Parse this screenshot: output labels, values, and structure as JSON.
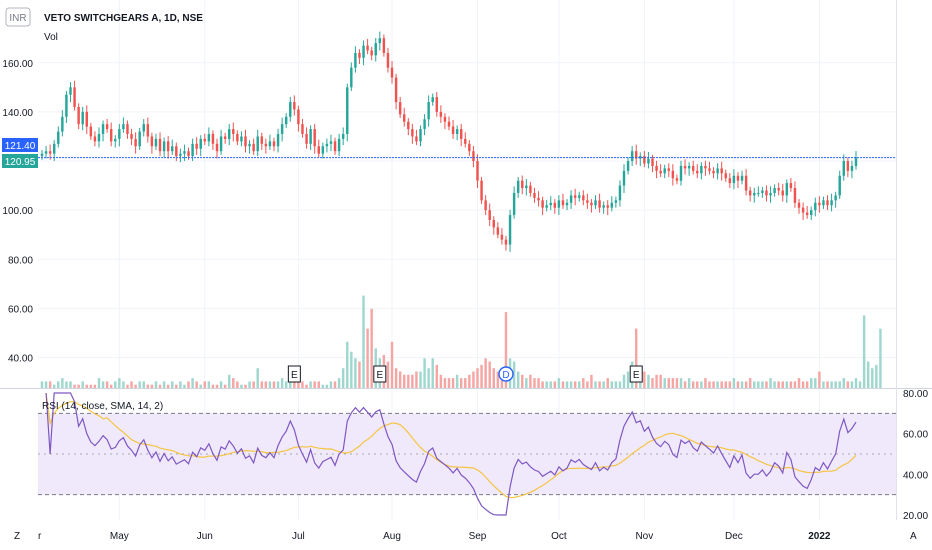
{
  "header": {
    "title": "VETO SWITCHGEARS A, 1D, NSE",
    "volume_label": "Vol",
    "currency_badge": "INR",
    "scale_badge_text": "1"
  },
  "price_labels": {
    "last_price": "121.40",
    "prev_price": "120.95",
    "last_price_value": 121.4,
    "last_price_color": "#2962ff",
    "prev_price_color": "#26a69a"
  },
  "rsi": {
    "label": "RSI (14, close, SMA, 14, 2)",
    "band_upper": 70,
    "band_lower": 30,
    "band_mid": 50,
    "yticks": [
      "80.00",
      "60.00",
      "40.00",
      "20.00"
    ],
    "rsi_color": "#7e57c2",
    "sma_color": "#f5c542"
  },
  "bottom": {
    "left_icon_text": "Z",
    "right_icon_text": "A",
    "x_first_partial": "r"
  },
  "earnings_markers": [
    "E",
    "E",
    "E"
  ],
  "dividend_marker": "D",
  "colors": {
    "up": "#26a69a",
    "down": "#ef5350",
    "vol_up": "#9fd7cf",
    "vol_down": "#f5a6a4",
    "band_fill": "#efe9fb",
    "grid": "#f0f3fa"
  },
  "chart_data": {
    "type": "candlestick",
    "title": "VETO SWITCHGEARS A, 1D, NSE",
    "x_tick_labels": [
      "May",
      "Jun",
      "Jul",
      "Aug",
      "Sep",
      "Oct",
      "Nov",
      "Dec",
      "2022"
    ],
    "y_tick_labels": [
      "160.00",
      "140.00",
      "120.00",
      "100.00",
      "80.00",
      "60.00",
      "40.00"
    ],
    "ylim": [
      30,
      177
    ],
    "grid": true,
    "rsi_ylim": [
      20,
      80
    ],
    "closes": [
      123,
      124,
      123,
      127,
      132,
      138,
      147,
      150,
      142,
      135,
      140,
      134,
      130,
      128,
      131,
      135,
      133,
      128,
      129,
      133,
      135,
      131,
      129,
      126,
      132,
      135,
      130,
      126,
      129,
      124,
      128,
      124,
      126,
      122,
      123,
      124,
      122,
      127,
      125,
      129,
      128,
      131,
      127,
      124,
      130,
      129,
      133,
      131,
      128,
      130,
      126,
      127,
      124,
      130,
      127,
      126,
      128,
      126,
      131,
      135,
      138,
      144,
      141,
      135,
      131,
      127,
      133,
      126,
      123,
      126,
      127,
      128,
      124,
      129,
      131,
      150,
      158,
      164,
      162,
      167,
      165,
      163,
      168,
      170,
      164,
      158,
      154,
      144,
      139,
      136,
      133,
      130,
      128,
      133,
      137,
      144,
      146,
      140,
      138,
      136,
      134,
      131,
      133,
      129,
      127,
      124,
      120,
      112,
      104,
      100,
      96,
      93,
      90,
      88,
      86,
      98,
      107,
      112,
      109,
      110,
      107,
      105,
      104,
      101,
      102,
      103,
      101,
      104,
      102,
      103,
      106,
      105,
      106,
      104,
      103,
      102,
      104,
      101,
      102,
      101,
      103,
      104,
      110,
      116,
      120,
      124,
      121,
      122,
      119,
      121,
      118,
      116,
      115,
      117,
      116,
      113,
      112,
      118,
      117,
      118,
      116,
      115,
      118,
      117,
      116,
      115,
      117,
      115,
      113,
      111,
      114,
      112,
      114,
      108,
      106,
      107,
      107,
      108,
      106,
      107,
      109,
      108,
      106,
      111,
      109,
      103,
      101,
      99,
      98,
      100,
      103,
      102,
      104,
      102,
      104,
      106,
      114,
      120,
      116,
      118,
      121.4
    ],
    "vol_levels": [
      2,
      2,
      2,
      1,
      2,
      3,
      2,
      2,
      1,
      1,
      2,
      1,
      1,
      1,
      3,
      2,
      2,
      1,
      2,
      3,
      2,
      1,
      2,
      1,
      2,
      2,
      1,
      1,
      2,
      1,
      2,
      1,
      2,
      1,
      2,
      1,
      2,
      3,
      2,
      1,
      2,
      2,
      1,
      1,
      2,
      1,
      4,
      3,
      2,
      1,
      1,
      2,
      2,
      6,
      2,
      2,
      2,
      2,
      2,
      3,
      2,
      3,
      2,
      2,
      2,
      1,
      2,
      2,
      2,
      1,
      1,
      2,
      2,
      3,
      6,
      14,
      11,
      9,
      8,
      28,
      18,
      24,
      12,
      9,
      10,
      8,
      14,
      6,
      5,
      4,
      4,
      4,
      5,
      5,
      9,
      6,
      9,
      7,
      4,
      3,
      3,
      3,
      4,
      3,
      3,
      4,
      5,
      6,
      7,
      9,
      8,
      6,
      5,
      4,
      23,
      9,
      8,
      5,
      4,
      3,
      4,
      3,
      3,
      2,
      2,
      2,
      2,
      3,
      2,
      2,
      2,
      2,
      2,
      3,
      2,
      4,
      2,
      2,
      2,
      3,
      2,
      2,
      2,
      4,
      5,
      8,
      18,
      6,
      5,
      4,
      3,
      4,
      4,
      3,
      3,
      3,
      3,
      3,
      2,
      3,
      2,
      2,
      2,
      3,
      2,
      2,
      2,
      2,
      2,
      2,
      3,
      2,
      2,
      2,
      3,
      2,
      2,
      2,
      2,
      3,
      2,
      2,
      2,
      2,
      2,
      2,
      3,
      2,
      2,
      3,
      3,
      5,
      2,
      2,
      2,
      2,
      2,
      3,
      2,
      2,
      3,
      2,
      22,
      8,
      6,
      7,
      18
    ]
  }
}
